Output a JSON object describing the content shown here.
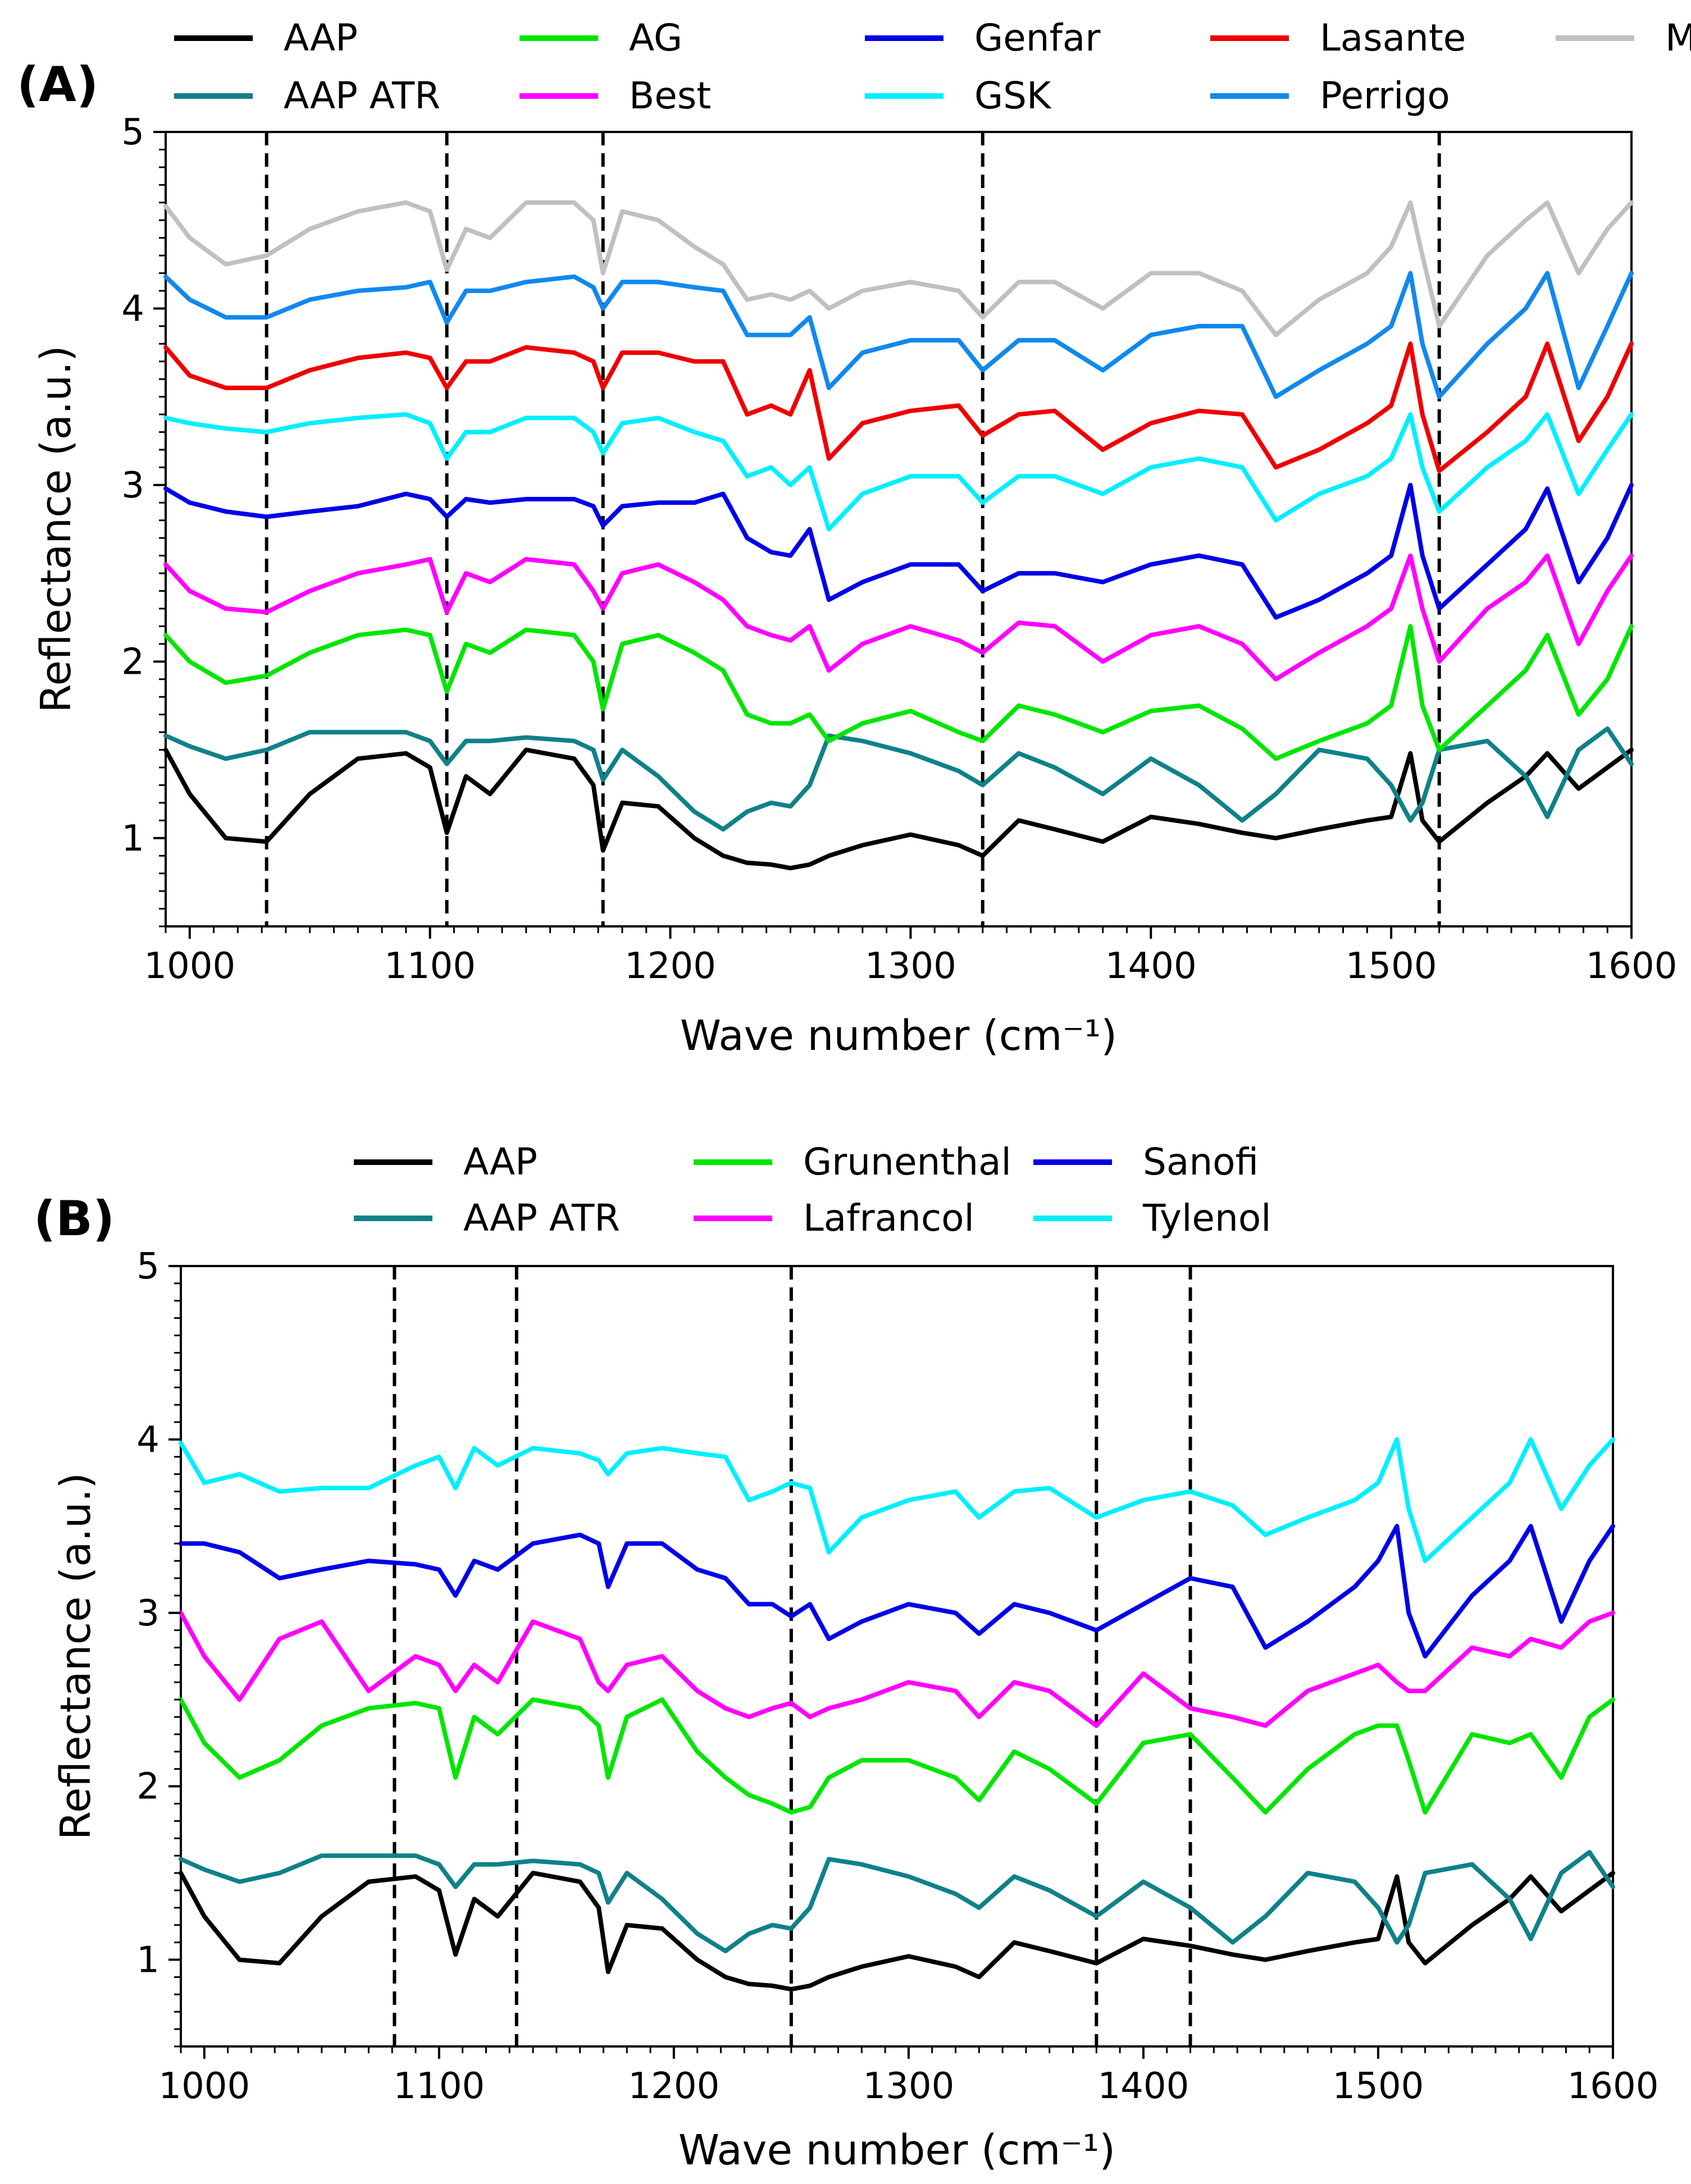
{
  "chart_data": [
    {
      "type": "line",
      "panel_label": "(A)",
      "xlabel": "Wave number (cm⁻¹)",
      "ylabel": "Reflectance (a.u.)",
      "xlim": [
        990,
        1600
      ],
      "ylim": [
        0.5,
        5.0
      ],
      "x_ticks": [
        1000,
        1100,
        1200,
        1300,
        1400,
        1500,
        1600
      ],
      "y_ticks": [
        1,
        2,
        3,
        4,
        5
      ],
      "grid": false,
      "legend_position": "top",
      "reference_lines_x": [
        1032,
        1107,
        1172,
        1330,
        1520
      ],
      "x": [
        990,
        1000,
        1015,
        1032,
        1050,
        1070,
        1090,
        1100,
        1107,
        1115,
        1125,
        1140,
        1160,
        1168,
        1172,
        1180,
        1195,
        1210,
        1222,
        1232,
        1242,
        1250,
        1258,
        1266,
        1280,
        1300,
        1320,
        1330,
        1345,
        1360,
        1380,
        1400,
        1420,
        1438,
        1452,
        1470,
        1490,
        1500,
        1508,
        1513,
        1520,
        1540,
        1556,
        1565,
        1578,
        1590,
        1600
      ],
      "series": [
        {
          "name": "AAP",
          "color": "#000000",
          "values": [
            1.5,
            1.25,
            1.0,
            0.98,
            1.25,
            1.45,
            1.48,
            1.4,
            1.03,
            1.35,
            1.25,
            1.5,
            1.45,
            1.3,
            0.93,
            1.2,
            1.18,
            1.0,
            0.9,
            0.86,
            0.85,
            0.83,
            0.85,
            0.9,
            0.96,
            1.02,
            0.96,
            0.9,
            1.1,
            1.05,
            0.98,
            1.12,
            1.08,
            1.03,
            1.0,
            1.05,
            1.1,
            1.12,
            1.48,
            1.1,
            0.98,
            1.2,
            1.35,
            1.48,
            1.28,
            1.4,
            1.5
          ]
        },
        {
          "name": "AAP ATR",
          "color": "#0f8189",
          "values": [
            1.58,
            1.52,
            1.45,
            1.5,
            1.6,
            1.6,
            1.6,
            1.55,
            1.42,
            1.55,
            1.55,
            1.57,
            1.55,
            1.5,
            1.33,
            1.5,
            1.35,
            1.15,
            1.05,
            1.15,
            1.2,
            1.18,
            1.3,
            1.58,
            1.55,
            1.48,
            1.38,
            1.3,
            1.48,
            1.4,
            1.25,
            1.45,
            1.3,
            1.1,
            1.25,
            1.5,
            1.45,
            1.3,
            1.1,
            1.2,
            1.5,
            1.55,
            1.35,
            1.12,
            1.5,
            1.62,
            1.42
          ]
        },
        {
          "name": "AG",
          "color": "#00e600",
          "values": [
            2.15,
            2.0,
            1.88,
            1.92,
            2.05,
            2.15,
            2.18,
            2.15,
            1.83,
            2.1,
            2.05,
            2.18,
            2.15,
            2.0,
            1.73,
            2.1,
            2.15,
            2.05,
            1.95,
            1.7,
            1.65,
            1.65,
            1.7,
            1.55,
            1.65,
            1.72,
            1.6,
            1.55,
            1.75,
            1.7,
            1.6,
            1.72,
            1.75,
            1.62,
            1.45,
            1.55,
            1.65,
            1.75,
            2.2,
            1.75,
            1.5,
            1.75,
            1.95,
            2.15,
            1.7,
            1.9,
            2.2
          ]
        },
        {
          "name": "Best",
          "color": "#ff00ff",
          "values": [
            2.55,
            2.4,
            2.3,
            2.28,
            2.4,
            2.5,
            2.55,
            2.58,
            2.28,
            2.5,
            2.45,
            2.58,
            2.55,
            2.4,
            2.3,
            2.5,
            2.55,
            2.45,
            2.35,
            2.2,
            2.15,
            2.12,
            2.2,
            1.95,
            2.1,
            2.2,
            2.12,
            2.05,
            2.22,
            2.2,
            2.0,
            2.15,
            2.2,
            2.1,
            1.9,
            2.05,
            2.2,
            2.3,
            2.6,
            2.3,
            2.0,
            2.3,
            2.45,
            2.6,
            2.1,
            2.4,
            2.6
          ]
        },
        {
          "name": "Genfar",
          "color": "#0000e6",
          "values": [
            2.98,
            2.9,
            2.85,
            2.82,
            2.85,
            2.88,
            2.95,
            2.92,
            2.82,
            2.92,
            2.9,
            2.92,
            2.92,
            2.88,
            2.77,
            2.88,
            2.9,
            2.9,
            2.95,
            2.7,
            2.62,
            2.6,
            2.75,
            2.35,
            2.45,
            2.55,
            2.55,
            2.4,
            2.5,
            2.5,
            2.45,
            2.55,
            2.6,
            2.55,
            2.25,
            2.35,
            2.5,
            2.6,
            3.0,
            2.6,
            2.3,
            2.55,
            2.75,
            2.98,
            2.45,
            2.7,
            3.0
          ]
        },
        {
          "name": "GSK",
          "color": "#00efff",
          "values": [
            3.38,
            3.35,
            3.32,
            3.3,
            3.35,
            3.38,
            3.4,
            3.35,
            3.15,
            3.3,
            3.3,
            3.38,
            3.38,
            3.3,
            3.18,
            3.35,
            3.38,
            3.3,
            3.25,
            3.05,
            3.1,
            3.0,
            3.1,
            2.75,
            2.95,
            3.05,
            3.05,
            2.9,
            3.05,
            3.05,
            2.95,
            3.1,
            3.15,
            3.1,
            2.8,
            2.95,
            3.05,
            3.15,
            3.4,
            3.1,
            2.85,
            3.1,
            3.25,
            3.4,
            2.95,
            3.2,
            3.4
          ]
        },
        {
          "name": "Lasante",
          "color": "#ee0000",
          "values": [
            3.78,
            3.62,
            3.55,
            3.55,
            3.65,
            3.72,
            3.75,
            3.72,
            3.55,
            3.7,
            3.7,
            3.78,
            3.75,
            3.7,
            3.55,
            3.75,
            3.75,
            3.7,
            3.7,
            3.4,
            3.45,
            3.4,
            3.65,
            3.15,
            3.35,
            3.42,
            3.45,
            3.28,
            3.4,
            3.42,
            3.2,
            3.35,
            3.42,
            3.4,
            3.1,
            3.2,
            3.35,
            3.45,
            3.8,
            3.4,
            3.08,
            3.3,
            3.5,
            3.8,
            3.25,
            3.5,
            3.8
          ]
        },
        {
          "name": "Perrigo",
          "color": "#1188ee",
          "values": [
            4.18,
            4.05,
            3.95,
            3.95,
            4.05,
            4.1,
            4.12,
            4.15,
            3.92,
            4.1,
            4.1,
            4.15,
            4.18,
            4.12,
            4.0,
            4.15,
            4.15,
            4.12,
            4.1,
            3.85,
            3.85,
            3.85,
            3.95,
            3.55,
            3.75,
            3.82,
            3.82,
            3.65,
            3.82,
            3.82,
            3.65,
            3.85,
            3.9,
            3.9,
            3.5,
            3.65,
            3.8,
            3.9,
            4.2,
            3.8,
            3.5,
            3.8,
            4.0,
            4.2,
            3.55,
            3.9,
            4.2
          ]
        },
        {
          "name": "MK",
          "color": "#c0c0c0",
          "values": [
            4.58,
            4.4,
            4.25,
            4.3,
            4.45,
            4.55,
            4.6,
            4.55,
            4.22,
            4.45,
            4.4,
            4.6,
            4.6,
            4.5,
            4.2,
            4.55,
            4.5,
            4.35,
            4.25,
            4.05,
            4.08,
            4.05,
            4.1,
            4.0,
            4.1,
            4.15,
            4.1,
            3.95,
            4.15,
            4.15,
            4.0,
            4.2,
            4.2,
            4.1,
            3.85,
            4.05,
            4.2,
            4.35,
            4.6,
            4.3,
            3.9,
            4.3,
            4.5,
            4.6,
            4.2,
            4.45,
            4.6
          ]
        }
      ]
    },
    {
      "type": "line",
      "panel_label": "(B)",
      "xlabel": "Wave number (cm⁻¹)",
      "ylabel": "Reflectance (a.u.)",
      "xlim": [
        990,
        1600
      ],
      "ylim": [
        0.5,
        5.0
      ],
      "x_ticks": [
        1000,
        1100,
        1200,
        1300,
        1400,
        1500,
        1600
      ],
      "y_ticks": [
        1,
        2,
        3,
        4,
        5
      ],
      "grid": false,
      "legend_position": "top",
      "reference_lines_x": [
        1081,
        1133,
        1250,
        1380,
        1420
      ],
      "x": [
        990,
        1000,
        1015,
        1032,
        1050,
        1070,
        1090,
        1100,
        1107,
        1115,
        1125,
        1140,
        1160,
        1168,
        1172,
        1180,
        1195,
        1210,
        1222,
        1232,
        1242,
        1250,
        1258,
        1266,
        1280,
        1300,
        1320,
        1330,
        1345,
        1360,
        1380,
        1400,
        1420,
        1438,
        1452,
        1470,
        1490,
        1500,
        1508,
        1513,
        1520,
        1540,
        1556,
        1565,
        1578,
        1590,
        1600
      ],
      "series": [
        {
          "name": "AAP",
          "color": "#000000",
          "values": [
            1.5,
            1.25,
            1.0,
            0.98,
            1.25,
            1.45,
            1.48,
            1.4,
            1.03,
            1.35,
            1.25,
            1.5,
            1.45,
            1.3,
            0.93,
            1.2,
            1.18,
            1.0,
            0.9,
            0.86,
            0.85,
            0.83,
            0.85,
            0.9,
            0.96,
            1.02,
            0.96,
            0.9,
            1.1,
            1.05,
            0.98,
            1.12,
            1.08,
            1.03,
            1.0,
            1.05,
            1.1,
            1.12,
            1.48,
            1.1,
            0.98,
            1.2,
            1.35,
            1.48,
            1.28,
            1.4,
            1.5
          ]
        },
        {
          "name": "AAP ATR",
          "color": "#0f8189",
          "values": [
            1.58,
            1.52,
            1.45,
            1.5,
            1.6,
            1.6,
            1.6,
            1.55,
            1.42,
            1.55,
            1.55,
            1.57,
            1.55,
            1.5,
            1.33,
            1.5,
            1.35,
            1.15,
            1.05,
            1.15,
            1.2,
            1.18,
            1.3,
            1.58,
            1.55,
            1.48,
            1.38,
            1.3,
            1.48,
            1.4,
            1.25,
            1.45,
            1.3,
            1.1,
            1.25,
            1.5,
            1.45,
            1.3,
            1.1,
            1.2,
            1.5,
            1.55,
            1.35,
            1.12,
            1.5,
            1.62,
            1.42
          ]
        },
        {
          "name": "Grunenthal",
          "color": "#00e600",
          "values": [
            2.5,
            2.25,
            2.05,
            2.15,
            2.35,
            2.45,
            2.48,
            2.45,
            2.05,
            2.4,
            2.3,
            2.5,
            2.45,
            2.35,
            2.05,
            2.4,
            2.5,
            2.2,
            2.05,
            1.95,
            1.9,
            1.85,
            1.88,
            2.05,
            2.15,
            2.15,
            2.05,
            1.92,
            2.2,
            2.1,
            1.9,
            2.25,
            2.3,
            2.05,
            1.85,
            2.1,
            2.3,
            2.35,
            2.35,
            2.15,
            1.85,
            2.3,
            2.25,
            2.3,
            2.05,
            2.4,
            2.5
          ]
        },
        {
          "name": "Lafrancol",
          "color": "#ff00ff",
          "values": [
            3.0,
            2.75,
            2.5,
            2.85,
            2.95,
            2.55,
            2.75,
            2.7,
            2.55,
            2.7,
            2.6,
            2.95,
            2.85,
            2.6,
            2.55,
            2.7,
            2.75,
            2.55,
            2.45,
            2.4,
            2.45,
            2.48,
            2.4,
            2.45,
            2.5,
            2.6,
            2.55,
            2.4,
            2.6,
            2.55,
            2.35,
            2.65,
            2.45,
            2.4,
            2.35,
            2.55,
            2.65,
            2.7,
            2.6,
            2.55,
            2.55,
            2.8,
            2.75,
            2.85,
            2.8,
            2.95,
            3.0
          ]
        },
        {
          "name": "Sanofi",
          "color": "#0000e6",
          "values": [
            3.4,
            3.4,
            3.35,
            3.2,
            3.25,
            3.3,
            3.28,
            3.25,
            3.1,
            3.3,
            3.25,
            3.4,
            3.45,
            3.4,
            3.15,
            3.4,
            3.4,
            3.25,
            3.2,
            3.05,
            3.05,
            2.98,
            3.05,
            2.85,
            2.95,
            3.05,
            3.0,
            2.88,
            3.05,
            3.0,
            2.9,
            3.05,
            3.2,
            3.15,
            2.8,
            2.95,
            3.15,
            3.3,
            3.5,
            3.0,
            2.75,
            3.1,
            3.3,
            3.5,
            2.95,
            3.3,
            3.5
          ]
        },
        {
          "name": "Tylenol",
          "color": "#00efff",
          "values": [
            3.98,
            3.75,
            3.8,
            3.7,
            3.72,
            3.72,
            3.85,
            3.9,
            3.72,
            3.95,
            3.85,
            3.95,
            3.92,
            3.88,
            3.8,
            3.92,
            3.95,
            3.92,
            3.9,
            3.65,
            3.7,
            3.75,
            3.72,
            3.35,
            3.55,
            3.65,
            3.7,
            3.55,
            3.7,
            3.72,
            3.55,
            3.65,
            3.7,
            3.62,
            3.45,
            3.55,
            3.65,
            3.75,
            4.0,
            3.6,
            3.3,
            3.55,
            3.75,
            4.0,
            3.6,
            3.85,
            4.0
          ]
        }
      ]
    }
  ]
}
